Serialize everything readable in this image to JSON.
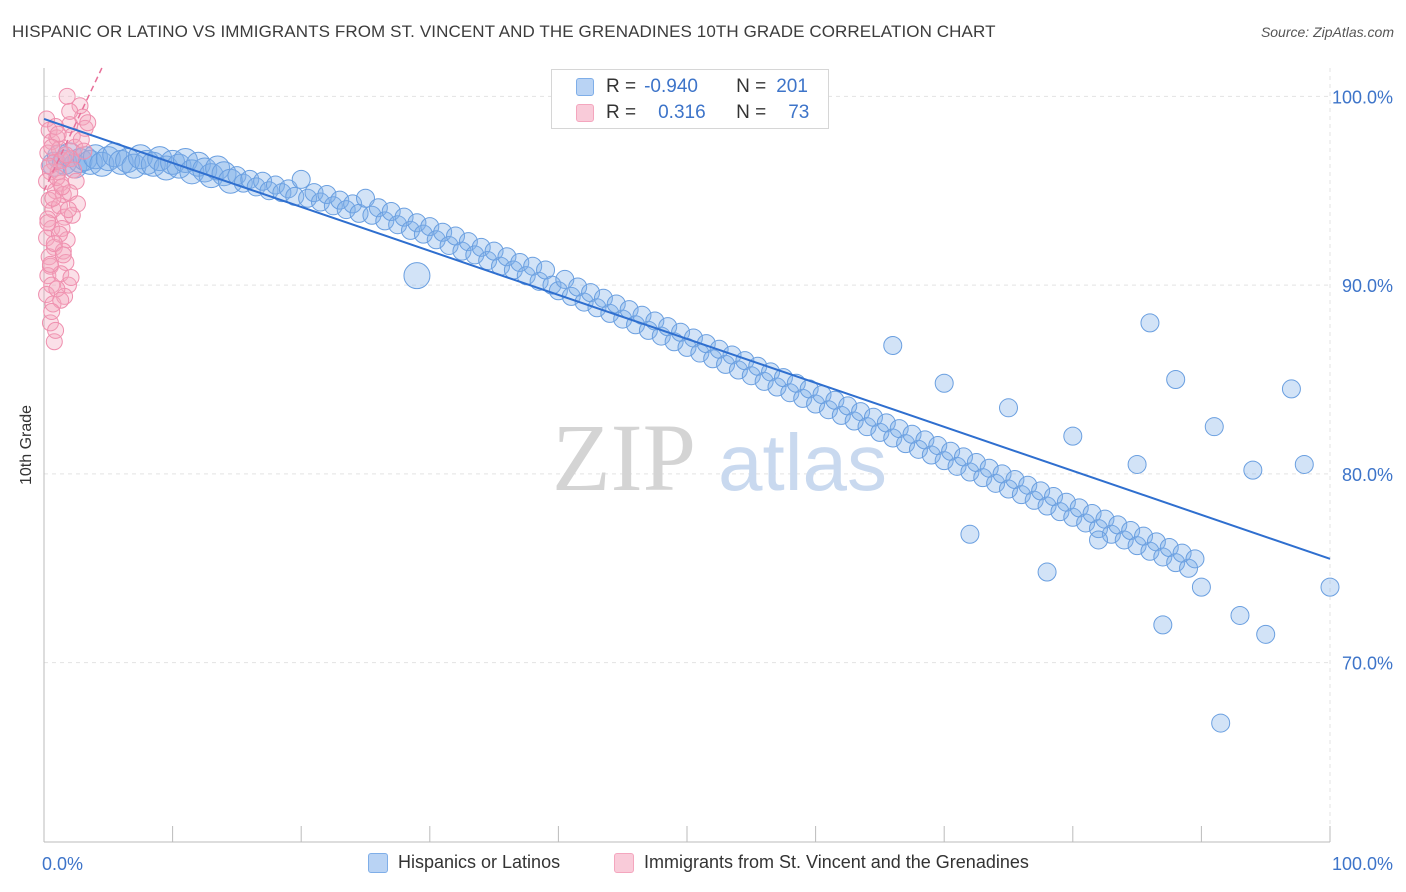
{
  "header": {
    "title": "HISPANIC OR LATINO VS IMMIGRANTS FROM ST. VINCENT AND THE GRENADINES 10TH GRADE CORRELATION CHART",
    "source": "Source: ZipAtlas.com"
  },
  "watermark": {
    "part1": "ZIP",
    "part2": "atlas"
  },
  "legend_top": {
    "rows": [
      {
        "r_label": "R =",
        "r_value": "-0.940",
        "n_label": "N =",
        "n_value": "201"
      },
      {
        "r_label": "R =",
        "r_value": "0.316",
        "n_label": "N =",
        "n_value": "73"
      }
    ]
  },
  "chart_data": {
    "type": "scatter",
    "title": "HISPANIC OR LATINO VS IMMIGRANTS FROM ST. VINCENT AND THE GRENADINES 10TH GRADE CORRELATION CHART",
    "xlabel": "",
    "ylabel": "10th Grade",
    "xlim": [
      0,
      100
    ],
    "ylim": [
      60.5,
      101.5
    ],
    "x_tick_labels": [
      "0.0%",
      "100.0%"
    ],
    "y_ticks": [
      100,
      90,
      80,
      70
    ],
    "y_tick_labels": [
      "100.0%",
      "90.0%",
      "80.0%",
      "70.0%"
    ],
    "grid": true,
    "legend_position": "bottom",
    "colors": {
      "series1": "#7faee8",
      "series1_line": "#2f6fcf",
      "series2": "#f4a6be",
      "series2_line": "#e8719a"
    },
    "series": [
      {
        "name": "Hispanics or Latinos",
        "r": -0.94,
        "n": 201,
        "trend": {
          "x": [
            0,
            100
          ],
          "y": [
            98.8,
            75.5
          ]
        },
        "points": [
          [
            0.8,
            96.4
          ],
          [
            1.2,
            96.8
          ],
          [
            1.6,
            96.5
          ],
          [
            2.0,
            96.9
          ],
          [
            2.4,
            96.3
          ],
          [
            2.8,
            96.6
          ],
          [
            3.2,
            96.7
          ],
          [
            3.6,
            96.5
          ],
          [
            4.0,
            96.8
          ],
          [
            4.5,
            96.4
          ],
          [
            5.0,
            96.7
          ],
          [
            5.5,
            96.9
          ],
          [
            6.0,
            96.5
          ],
          [
            6.5,
            96.6
          ],
          [
            7.0,
            96.3
          ],
          [
            7.5,
            96.8
          ],
          [
            8.0,
            96.5
          ],
          [
            8.5,
            96.4
          ],
          [
            9.0,
            96.7
          ],
          [
            9.5,
            96.2
          ],
          [
            10.0,
            96.5
          ],
          [
            10.5,
            96.3
          ],
          [
            11.0,
            96.6
          ],
          [
            11.5,
            96.0
          ],
          [
            12.0,
            96.4
          ],
          [
            12.5,
            96.1
          ],
          [
            13.0,
            95.8
          ],
          [
            13.5,
            96.2
          ],
          [
            14.0,
            95.9
          ],
          [
            14.5,
            95.5
          ],
          [
            15.0,
            95.8
          ],
          [
            15.5,
            95.4
          ],
          [
            16.0,
            95.6
          ],
          [
            16.5,
            95.2
          ],
          [
            17.0,
            95.5
          ],
          [
            17.5,
            95.0
          ],
          [
            18.0,
            95.3
          ],
          [
            18.5,
            94.9
          ],
          [
            19.0,
            95.1
          ],
          [
            19.5,
            94.7
          ],
          [
            20.0,
            95.6
          ],
          [
            20.5,
            94.6
          ],
          [
            21.0,
            94.9
          ],
          [
            21.5,
            94.4
          ],
          [
            22.0,
            94.8
          ],
          [
            22.5,
            94.2
          ],
          [
            23.0,
            94.5
          ],
          [
            23.5,
            94.0
          ],
          [
            24.0,
            94.3
          ],
          [
            24.5,
            93.8
          ],
          [
            25.0,
            94.6
          ],
          [
            25.5,
            93.7
          ],
          [
            26.0,
            94.1
          ],
          [
            26.5,
            93.4
          ],
          [
            27.0,
            93.9
          ],
          [
            27.5,
            93.2
          ],
          [
            28.0,
            93.6
          ],
          [
            28.5,
            92.9
          ],
          [
            29.0,
            93.3
          ],
          [
            29.5,
            92.7
          ],
          [
            30.0,
            93.1
          ],
          [
            30.5,
            92.4
          ],
          [
            31.0,
            92.8
          ],
          [
            31.5,
            92.1
          ],
          [
            32.0,
            92.6
          ],
          [
            32.5,
            91.8
          ],
          [
            33.0,
            92.3
          ],
          [
            33.5,
            91.6
          ],
          [
            34.0,
            92.0
          ],
          [
            34.5,
            91.3
          ],
          [
            35.0,
            91.8
          ],
          [
            35.5,
            91.0
          ],
          [
            36.0,
            91.5
          ],
          [
            36.5,
            90.8
          ],
          [
            37.0,
            91.2
          ],
          [
            37.5,
            90.5
          ],
          [
            38.0,
            91.0
          ],
          [
            38.5,
            90.2
          ],
          [
            39.0,
            90.8
          ],
          [
            39.5,
            90.0
          ],
          [
            40.0,
            89.7
          ],
          [
            40.5,
            90.3
          ],
          [
            41.0,
            89.4
          ],
          [
            41.5,
            89.9
          ],
          [
            42.0,
            89.1
          ],
          [
            42.5,
            89.6
          ],
          [
            43.0,
            88.8
          ],
          [
            43.5,
            89.3
          ],
          [
            44.0,
            88.5
          ],
          [
            44.5,
            89.0
          ],
          [
            45.0,
            88.2
          ],
          [
            45.5,
            88.7
          ],
          [
            46.0,
            87.9
          ],
          [
            46.5,
            88.4
          ],
          [
            47.0,
            87.6
          ],
          [
            47.5,
            88.1
          ],
          [
            48.0,
            87.3
          ],
          [
            48.5,
            87.8
          ],
          [
            49.0,
            87.0
          ],
          [
            49.5,
            87.5
          ],
          [
            50.0,
            86.7
          ],
          [
            50.5,
            87.2
          ],
          [
            51.0,
            86.4
          ],
          [
            51.5,
            86.9
          ],
          [
            52.0,
            86.1
          ],
          [
            52.5,
            86.6
          ],
          [
            53.0,
            85.8
          ],
          [
            53.5,
            86.3
          ],
          [
            54.0,
            85.5
          ],
          [
            54.5,
            86.0
          ],
          [
            55.0,
            85.2
          ],
          [
            55.5,
            85.7
          ],
          [
            56.0,
            84.9
          ],
          [
            56.5,
            85.4
          ],
          [
            57.0,
            84.6
          ],
          [
            57.5,
            85.1
          ],
          [
            58.0,
            84.3
          ],
          [
            58.5,
            84.8
          ],
          [
            59.0,
            84.0
          ],
          [
            59.5,
            84.5
          ],
          [
            60.0,
            83.7
          ],
          [
            60.5,
            84.2
          ],
          [
            61.0,
            83.4
          ],
          [
            61.5,
            83.9
          ],
          [
            62.0,
            83.1
          ],
          [
            62.5,
            83.6
          ],
          [
            63.0,
            82.8
          ],
          [
            63.5,
            83.3
          ],
          [
            64.0,
            82.5
          ],
          [
            64.5,
            83.0
          ],
          [
            65.0,
            82.2
          ],
          [
            65.5,
            82.7
          ],
          [
            66.0,
            81.9
          ],
          [
            66.5,
            82.4
          ],
          [
            67.0,
            81.6
          ],
          [
            67.5,
            82.1
          ],
          [
            68.0,
            81.3
          ],
          [
            68.5,
            81.8
          ],
          [
            69.0,
            81.0
          ],
          [
            69.5,
            81.5
          ],
          [
            70.0,
            80.7
          ],
          [
            70.5,
            81.2
          ],
          [
            71.0,
            80.4
          ],
          [
            71.5,
            80.9
          ],
          [
            72.0,
            80.1
          ],
          [
            72.5,
            80.6
          ],
          [
            73.0,
            79.8
          ],
          [
            73.5,
            80.3
          ],
          [
            74.0,
            79.5
          ],
          [
            74.5,
            80.0
          ],
          [
            75.0,
            79.2
          ],
          [
            75.5,
            79.7
          ],
          [
            76.0,
            78.9
          ],
          [
            76.5,
            79.4
          ],
          [
            77.0,
            78.6
          ],
          [
            77.5,
            79.1
          ],
          [
            78.0,
            78.3
          ],
          [
            78.5,
            78.8
          ],
          [
            79.0,
            78.0
          ],
          [
            79.5,
            78.5
          ],
          [
            80.0,
            77.7
          ],
          [
            80.5,
            78.2
          ],
          [
            81.0,
            77.4
          ],
          [
            81.5,
            77.9
          ],
          [
            82.0,
            77.1
          ],
          [
            82.5,
            77.6
          ],
          [
            83.0,
            76.8
          ],
          [
            83.5,
            77.3
          ],
          [
            84.0,
            76.5
          ],
          [
            84.5,
            77.0
          ],
          [
            85.0,
            76.2
          ],
          [
            85.5,
            76.7
          ],
          [
            86.0,
            75.9
          ],
          [
            86.5,
            76.4
          ],
          [
            87.0,
            75.6
          ],
          [
            87.5,
            76.1
          ],
          [
            88.0,
            75.3
          ],
          [
            88.5,
            75.8
          ],
          [
            89.0,
            75.0
          ],
          [
            89.5,
            75.5
          ],
          [
            66.0,
            86.8
          ],
          [
            70.0,
            84.8
          ],
          [
            75.0,
            83.5
          ],
          [
            80.0,
            82.0
          ],
          [
            85.0,
            80.5
          ],
          [
            86.0,
            88.0
          ],
          [
            88.0,
            85.0
          ],
          [
            91.0,
            82.5
          ],
          [
            94.0,
            80.2
          ],
          [
            97.0,
            84.5
          ],
          [
            98.0,
            80.5
          ],
          [
            72.0,
            76.8
          ],
          [
            78.0,
            74.8
          ],
          [
            82.0,
            76.5
          ],
          [
            87.0,
            72.0
          ],
          [
            90.0,
            74.0
          ],
          [
            93.0,
            72.5
          ],
          [
            95.0,
            71.5
          ],
          [
            100.0,
            74.0
          ],
          [
            91.5,
            66.8
          ],
          [
            29.0,
            90.5
          ]
        ]
      },
      {
        "name": "Immigrants from St. Vincent and the Grenadines",
        "r": 0.316,
        "n": 73,
        "trend": {
          "x": [
            0,
            4.5
          ],
          "y": [
            95.0,
            101.5
          ]
        },
        "points": [
          [
            0.2,
            98.8
          ],
          [
            0.4,
            98.2
          ],
          [
            0.6,
            97.6
          ],
          [
            0.3,
            97.0
          ],
          [
            0.8,
            96.5
          ],
          [
            0.5,
            96.0
          ],
          [
            0.2,
            95.5
          ],
          [
            0.9,
            95.0
          ],
          [
            0.4,
            94.5
          ],
          [
            0.7,
            94.0
          ],
          [
            0.3,
            93.5
          ],
          [
            0.6,
            93.0
          ],
          [
            0.2,
            92.5
          ],
          [
            0.8,
            92.0
          ],
          [
            0.4,
            91.5
          ],
          [
            0.5,
            91.0
          ],
          [
            0.3,
            90.5
          ],
          [
            0.6,
            90.0
          ],
          [
            0.2,
            89.5
          ],
          [
            0.7,
            89.0
          ],
          [
            0.5,
            88.0
          ],
          [
            0.8,
            87.0
          ],
          [
            1.0,
            97.8
          ],
          [
            1.2,
            97.2
          ],
          [
            1.4,
            96.6
          ],
          [
            1.1,
            96.0
          ],
          [
            1.3,
            95.4
          ],
          [
            1.5,
            94.8
          ],
          [
            1.2,
            94.2
          ],
          [
            1.6,
            93.6
          ],
          [
            1.4,
            93.0
          ],
          [
            1.8,
            92.4
          ],
          [
            1.5,
            91.8
          ],
          [
            1.7,
            91.2
          ],
          [
            1.3,
            90.6
          ],
          [
            1.9,
            90.0
          ],
          [
            1.6,
            89.4
          ],
          [
            2.0,
            98.5
          ],
          [
            2.2,
            97.9
          ],
          [
            2.4,
            97.3
          ],
          [
            2.1,
            96.7
          ],
          [
            2.3,
            96.1
          ],
          [
            2.5,
            95.5
          ],
          [
            2.0,
            94.9
          ],
          [
            2.6,
            94.3
          ],
          [
            2.2,
            93.7
          ],
          [
            2.8,
            99.5
          ],
          [
            3.0,
            98.9
          ],
          [
            3.2,
            98.3
          ],
          [
            2.9,
            97.7
          ],
          [
            3.1,
            97.1
          ],
          [
            3.4,
            98.6
          ],
          [
            1.8,
            100.0
          ],
          [
            2.0,
            99.2
          ],
          [
            0.9,
            98.4
          ],
          [
            1.1,
            98.0
          ],
          [
            0.6,
            97.3
          ],
          [
            1.7,
            96.9
          ],
          [
            0.4,
            96.3
          ],
          [
            1.0,
            95.7
          ],
          [
            1.4,
            95.2
          ],
          [
            0.7,
            94.6
          ],
          [
            1.9,
            94.0
          ],
          [
            0.3,
            93.3
          ],
          [
            1.2,
            92.7
          ],
          [
            0.8,
            92.2
          ],
          [
            1.5,
            91.6
          ],
          [
            0.5,
            91.1
          ],
          [
            2.1,
            90.4
          ],
          [
            1.0,
            89.8
          ],
          [
            1.3,
            89.2
          ],
          [
            0.6,
            88.6
          ],
          [
            0.9,
            87.6
          ]
        ]
      }
    ]
  }
}
